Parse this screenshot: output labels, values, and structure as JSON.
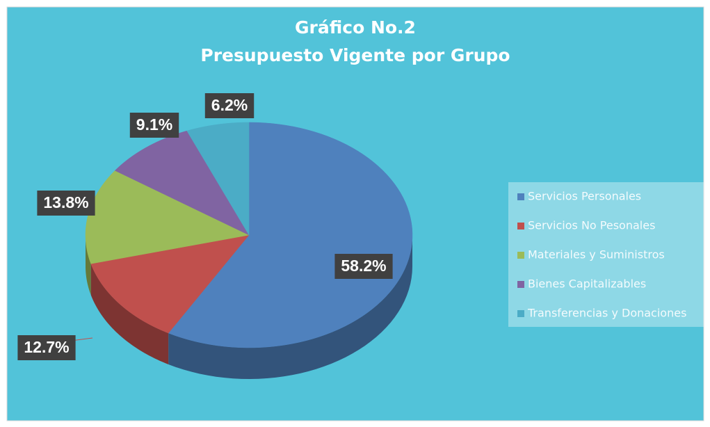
{
  "chart_data": {
    "type": "pie",
    "title": "Gráfico No.2",
    "subtitle": "Presupuesto Vigente por Grupo",
    "categories": [
      "Servicios Personales",
      "Servicios No Pesonales",
      "Materiales y Suministros",
      "Bienes Capitalizables",
      "Transferencias y Donaciones"
    ],
    "values": [
      58.2,
      12.7,
      13.8,
      9.1,
      6.2
    ],
    "value_labels": [
      "58.2%",
      "12.7%",
      "13.8%",
      "9.1%",
      "6.2%"
    ],
    "colors": [
      "#4f81bd",
      "#c0504d",
      "#9bbb59",
      "#8064a2",
      "#4bacc6"
    ],
    "legend": "right"
  }
}
